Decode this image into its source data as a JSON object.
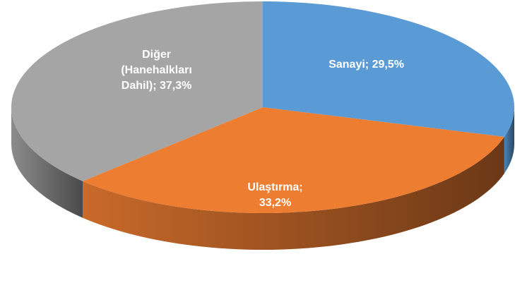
{
  "chart_data": {
    "type": "pie",
    "values": [
      29.5,
      33.2,
      37.3
    ],
    "value_labels": [
      "Sanayi; 29,5%",
      "Ulaştırma; 33,2%",
      "Diğer (Hanehalkları Dahil); 37,3%"
    ],
    "colors": [
      "#5b9bd5",
      "#ed7d31",
      "#a5a5a5"
    ]
  }
}
